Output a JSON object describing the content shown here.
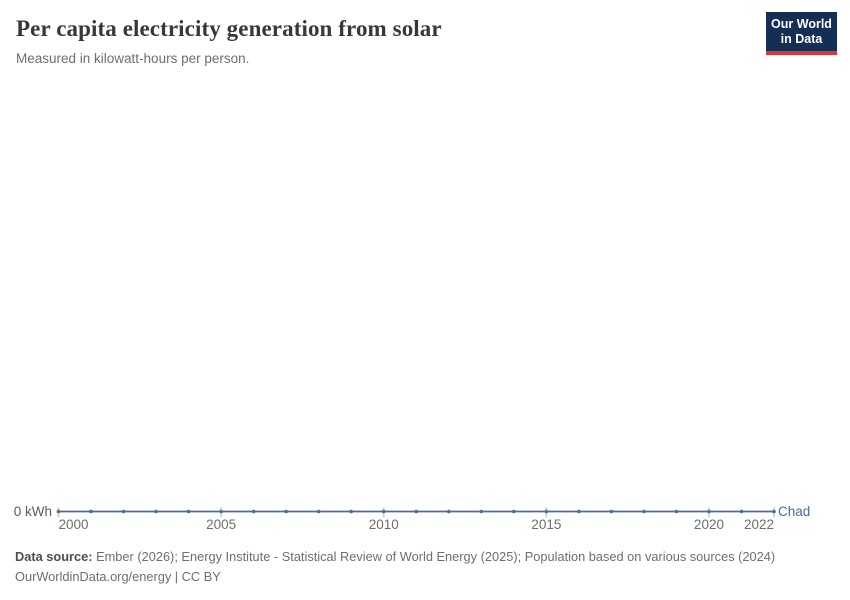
{
  "chart_data": {
    "type": "line",
    "title": "Per capita electricity generation from solar",
    "subtitle": "Measured in kilowatt-hours per person.",
    "x": [
      2000,
      2001,
      2002,
      2003,
      2004,
      2005,
      2006,
      2007,
      2008,
      2009,
      2010,
      2011,
      2012,
      2013,
      2014,
      2015,
      2016,
      2017,
      2018,
      2019,
      2020,
      2021,
      2022
    ],
    "series": [
      {
        "name": "Chad",
        "color": "#4C6A9C",
        "values": [
          0,
          0,
          0,
          0,
          0,
          0,
          0,
          0,
          0,
          0,
          0,
          0,
          0,
          0,
          0,
          0,
          0,
          0,
          0,
          0,
          0,
          0,
          0
        ]
      }
    ],
    "x_range": [
      2000,
      2022
    ],
    "x_ticks": [
      2000,
      2005,
      2010,
      2015,
      2020,
      2022
    ],
    "y_ticks": [
      "0 kWh"
    ],
    "y_axis_tick_label": "0 kWh",
    "ylim": [
      0,
      0
    ],
    "grid": false,
    "legend_position": "right-of-line-end",
    "entity_label": "Chad"
  },
  "logo": {
    "line1": "Our World",
    "line2": "in Data"
  },
  "footer": {
    "source_label": "Data source:",
    "source_text": " Ember (2026); Energy Institute - Statistical Review of World Energy (2025); Population based on various sources (2024)",
    "citation": "OurWorldinData.org/energy | CC BY"
  },
  "colors": {
    "line": "#4C6A9C",
    "axis_tick": "#c3c6cf",
    "title_text": "#383838",
    "logo_background": "#152E54",
    "logo_accent": "#D73A34"
  }
}
